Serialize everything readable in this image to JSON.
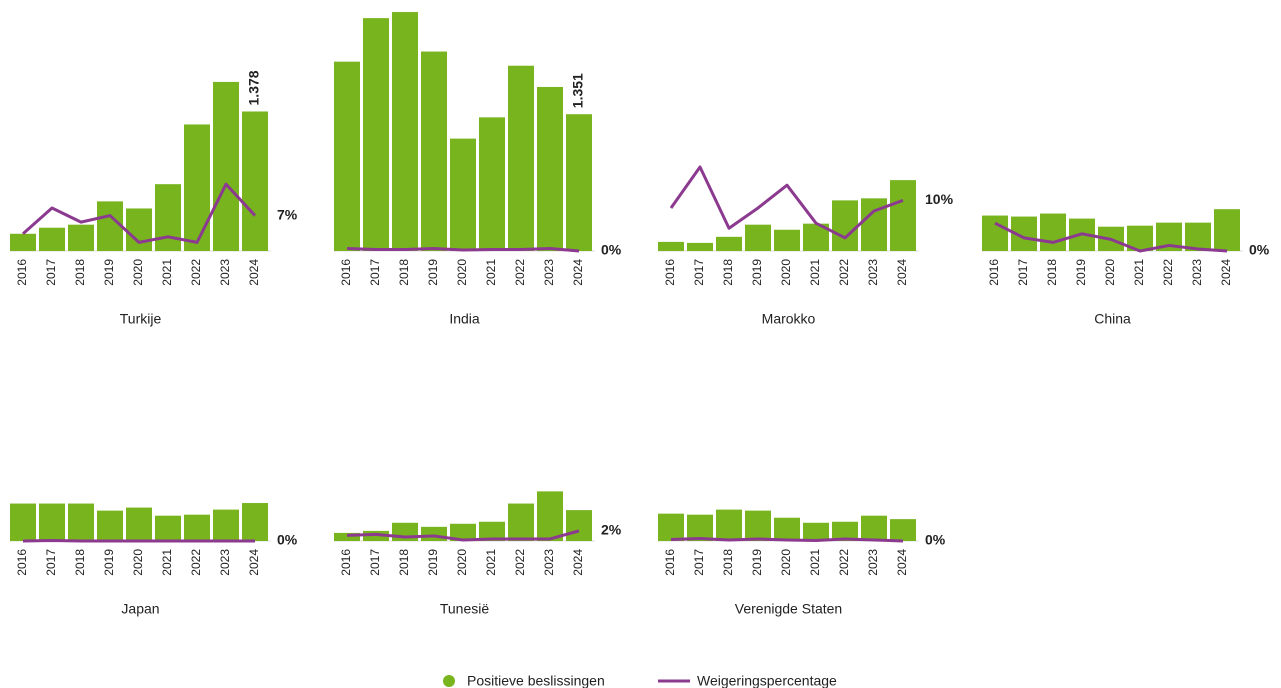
{
  "chart_data": [
    {
      "type": "bar",
      "title": "Turkije",
      "categories": [
        "2016",
        "2017",
        "2018",
        "2019",
        "2020",
        "2021",
        "2022",
        "2023",
        "2024"
      ],
      "ylim": [
        0,
        2400
      ],
      "y2lim": [
        0,
        48
      ],
      "series": [
        {
          "name": "Positieve beslissingen",
          "color": "#77b41e",
          "values": [
            170,
            230,
            260,
            490,
            420,
            660,
            1250,
            1670,
            1378
          ],
          "value_labels": [
            null,
            null,
            null,
            null,
            null,
            null,
            null,
            null,
            "1.378"
          ]
        },
        {
          "name": "Weigeringspercentage",
          "color": "#8b3a8f",
          "axis": "y2",
          "values": [
            3.4,
            8.5,
            5.7,
            7,
            1.7,
            2.8,
            1.7,
            13.2,
            7
          ],
          "value_labels": [
            null,
            null,
            null,
            null,
            null,
            null,
            null,
            null,
            "7%"
          ]
        }
      ]
    },
    {
      "type": "bar",
      "title": "India",
      "categories": [
        "2016",
        "2017",
        "2018",
        "2019",
        "2020",
        "2021",
        "2022",
        "2023",
        "2024"
      ],
      "ylim": [
        0,
        2400
      ],
      "y2lim": [
        0,
        48
      ],
      "series": [
        {
          "name": "Positieve beslissingen",
          "color": "#77b41e",
          "values": [
            1870,
            2300,
            2360,
            1970,
            1110,
            1320,
            1830,
            1620,
            1351
          ],
          "value_labels": [
            null,
            null,
            null,
            null,
            null,
            null,
            null,
            null,
            "1.351"
          ]
        },
        {
          "name": "Weigeringspercentage",
          "color": "#8b3a8f",
          "axis": "y2",
          "values": [
            0.5,
            0.3,
            0.3,
            0.5,
            0.2,
            0.3,
            0.3,
            0.5,
            0
          ],
          "value_labels": [
            null,
            null,
            null,
            null,
            null,
            null,
            null,
            null,
            "0%"
          ]
        }
      ]
    },
    {
      "type": "bar",
      "title": "Marokko",
      "categories": [
        "2016",
        "2017",
        "2018",
        "2019",
        "2020",
        "2021",
        "2022",
        "2023",
        "2024"
      ],
      "ylim": [
        0,
        2400
      ],
      "y2lim": [
        0,
        48
      ],
      "series": [
        {
          "name": "Positieve beslissingen",
          "color": "#77b41e",
          "values": [
            90,
            80,
            140,
            260,
            210,
            270,
            500,
            520,
            700
          ]
        },
        {
          "name": "Weigeringspercentage",
          "color": "#8b3a8f",
          "axis": "y2",
          "values": [
            8.5,
            16.6,
            4.5,
            8.5,
            13,
            5.5,
            2.6,
            7.9,
            10
          ],
          "value_labels": [
            null,
            null,
            null,
            null,
            null,
            null,
            null,
            null,
            "10%"
          ]
        }
      ]
    },
    {
      "type": "bar",
      "title": "China",
      "categories": [
        "2016",
        "2017",
        "2018",
        "2019",
        "2020",
        "2021",
        "2022",
        "2023",
        "2024"
      ],
      "ylim": [
        0,
        2400
      ],
      "y2lim": [
        0,
        48
      ],
      "series": [
        {
          "name": "Positieve beslissingen",
          "color": "#77b41e",
          "values": [
            350,
            340,
            370,
            320,
            240,
            250,
            280,
            280,
            413
          ]
        },
        {
          "name": "Weigeringspercentage",
          "color": "#8b3a8f",
          "axis": "y2",
          "values": [
            5.5,
            2.6,
            1.7,
            3.4,
            2.3,
            0,
            1.1,
            0.4,
            0
          ],
          "value_labels": [
            null,
            null,
            null,
            null,
            null,
            null,
            null,
            null,
            "0%"
          ]
        }
      ]
    },
    {
      "type": "bar",
      "title": "Japan",
      "categories": [
        "2016",
        "2017",
        "2018",
        "2019",
        "2020",
        "2021",
        "2022",
        "2023",
        "2024"
      ],
      "ylim": [
        0,
        2400
      ],
      "y2lim": [
        0,
        48
      ],
      "series": [
        {
          "name": "Positieve beslissingen",
          "color": "#77b41e",
          "values": [
            370,
            370,
            370,
            300,
            330,
            250,
            260,
            310,
            375
          ]
        },
        {
          "name": "Weigeringspercentage",
          "color": "#8b3a8f",
          "axis": "y2",
          "values": [
            0,
            0.1,
            0,
            0,
            0,
            0,
            0,
            0,
            0
          ],
          "value_labels": [
            null,
            null,
            null,
            null,
            null,
            null,
            null,
            null,
            "0%"
          ]
        }
      ]
    },
    {
      "type": "bar",
      "title": "Tunesië",
      "categories": [
        "2016",
        "2017",
        "2018",
        "2019",
        "2020",
        "2021",
        "2022",
        "2023",
        "2024"
      ],
      "ylim": [
        0,
        2400
      ],
      "y2lim": [
        0,
        48
      ],
      "series": [
        {
          "name": "Positieve beslissingen",
          "color": "#77b41e",
          "values": [
            80,
            100,
            180,
            140,
            170,
            190,
            370,
            490,
            305
          ]
        },
        {
          "name": "Weigeringspercentage",
          "color": "#8b3a8f",
          "axis": "y2",
          "values": [
            1.1,
            1.3,
            0.8,
            1,
            0.2,
            0.4,
            0.4,
            0.4,
            2
          ],
          "value_labels": [
            null,
            null,
            null,
            null,
            null,
            null,
            null,
            null,
            "2%"
          ]
        }
      ]
    },
    {
      "type": "bar",
      "title": "Verenigde Staten",
      "categories": [
        "2016",
        "2017",
        "2018",
        "2019",
        "2020",
        "2021",
        "2022",
        "2023",
        "2024"
      ],
      "ylim": [
        0,
        2400
      ],
      "y2lim": [
        0,
        48
      ],
      "series": [
        {
          "name": "Positieve beslissingen",
          "color": "#77b41e",
          "values": [
            270,
            260,
            310,
            300,
            230,
            180,
            190,
            250,
            216
          ]
        },
        {
          "name": "Weigeringspercentage",
          "color": "#8b3a8f",
          "axis": "y2",
          "values": [
            0.3,
            0.5,
            0.2,
            0.4,
            0.2,
            0.1,
            0.4,
            0.2,
            0
          ],
          "value_labels": [
            null,
            null,
            null,
            null,
            null,
            null,
            null,
            null,
            "0%"
          ]
        }
      ]
    }
  ]
}
